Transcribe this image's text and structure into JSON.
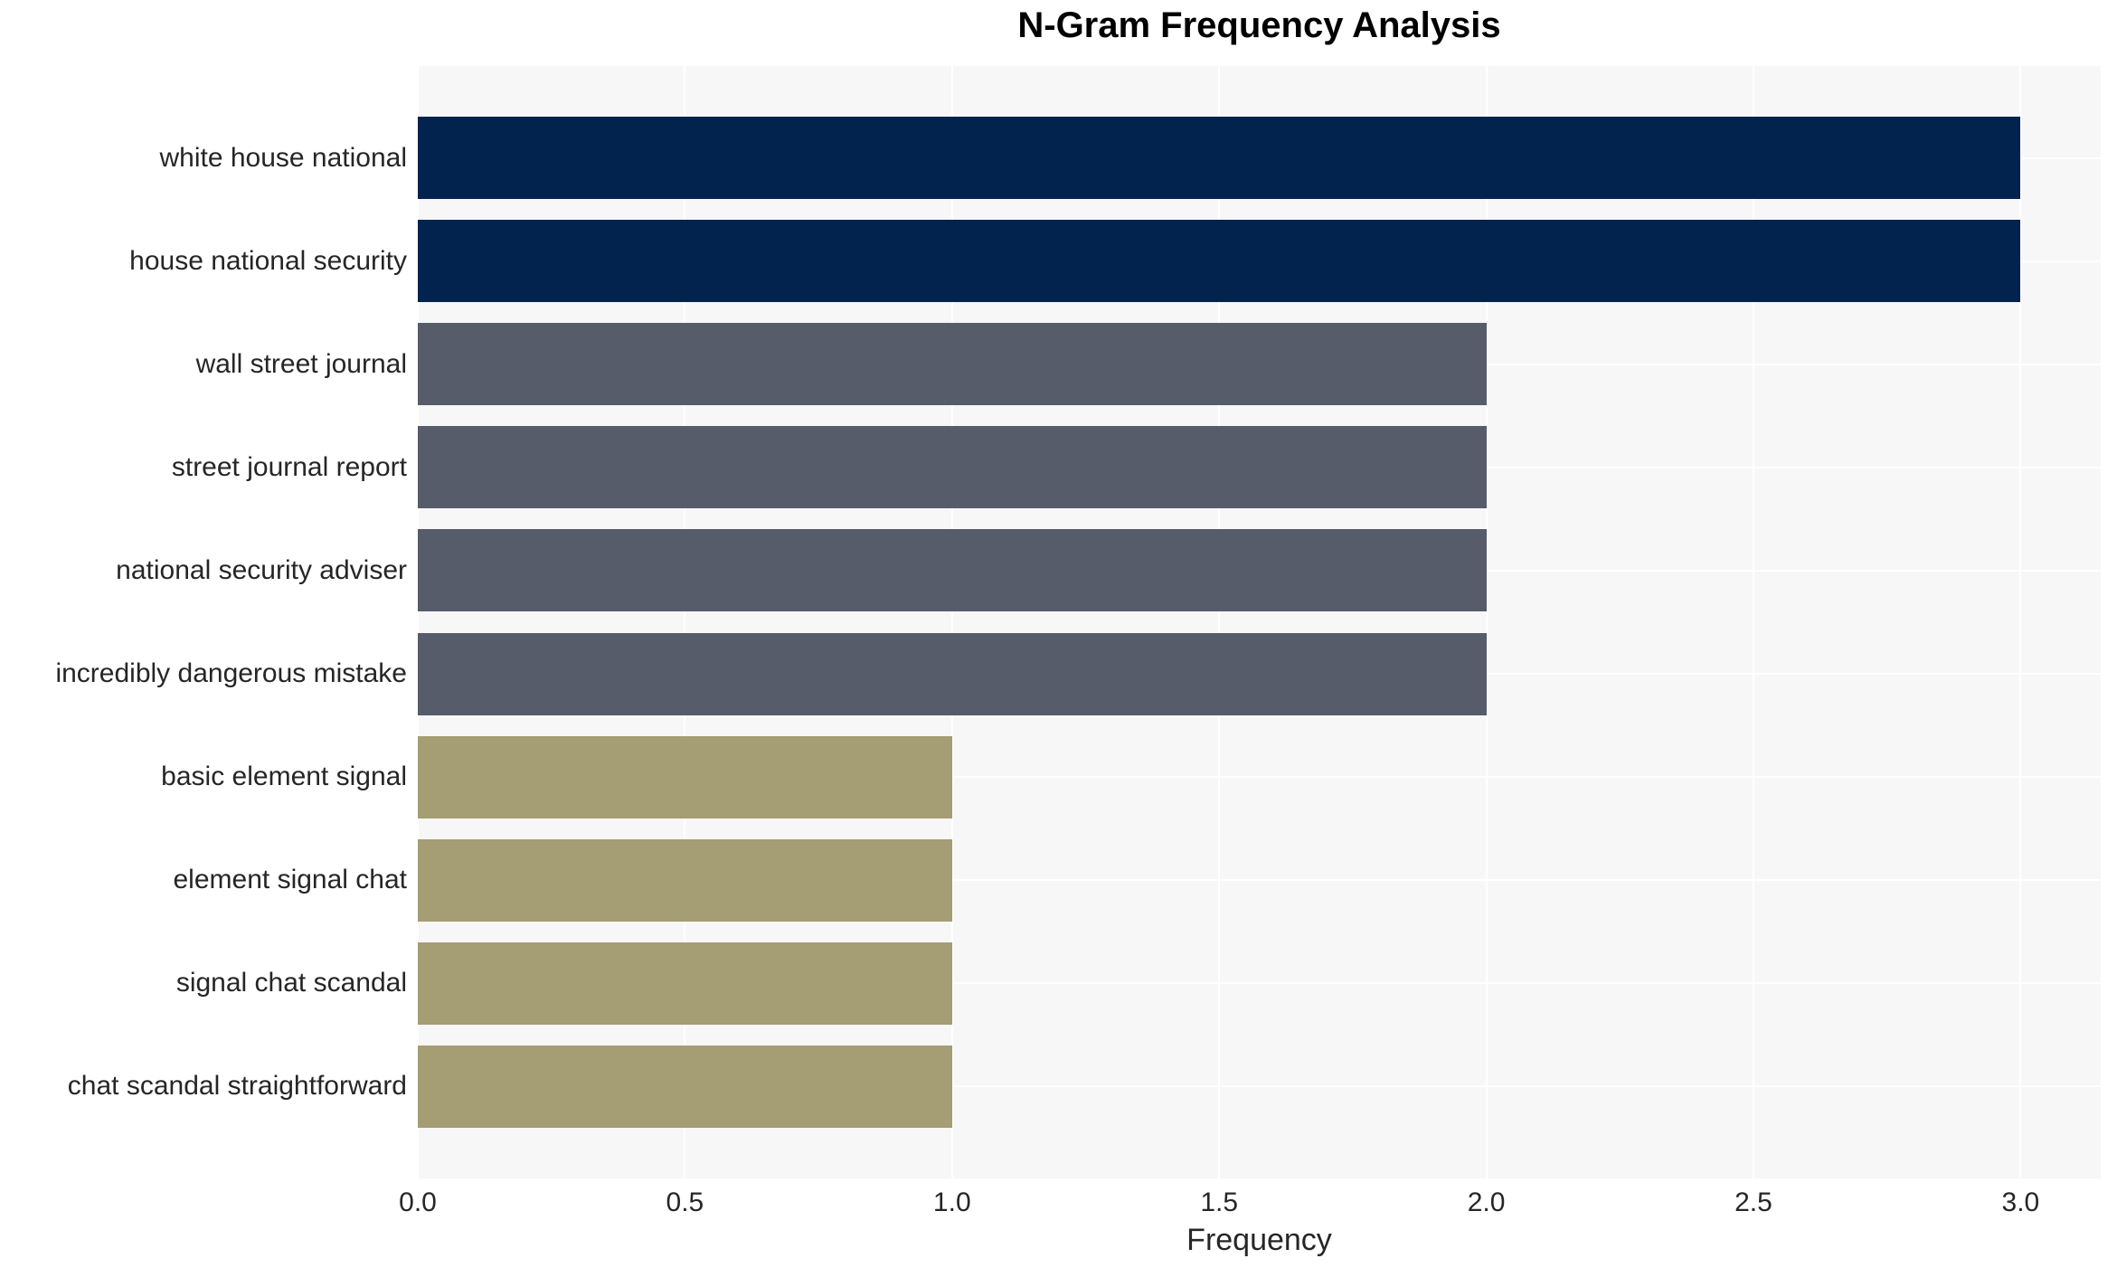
{
  "chart_data": {
    "type": "bar",
    "orientation": "horizontal",
    "title": "N-Gram Frequency Analysis",
    "xlabel": "Frequency",
    "ylabel": "",
    "categories": [
      "white house national",
      "house national security",
      "wall street journal",
      "street journal report",
      "national security adviser",
      "incredibly dangerous mistake",
      "basic element signal",
      "element signal chat",
      "signal chat scandal",
      "chat scandal straightforward"
    ],
    "values": [
      3,
      3,
      2,
      2,
      2,
      2,
      1,
      1,
      1,
      1
    ],
    "bar_colors": [
      "#02234e",
      "#02234e",
      "#575c6a",
      "#575c6a",
      "#575c6a",
      "#575c6a",
      "#a59d73",
      "#a59d73",
      "#a59d73",
      "#a59d73"
    ],
    "xticks": [
      {
        "label": "0.0",
        "value": 0.0
      },
      {
        "label": "0.5",
        "value": 0.5
      },
      {
        "label": "1.0",
        "value": 1.0
      },
      {
        "label": "1.5",
        "value": 1.5
      },
      {
        "label": "2.0",
        "value": 2.0
      },
      {
        "label": "2.5",
        "value": 2.5
      },
      {
        "label": "3.0",
        "value": 3.0
      }
    ],
    "xlim": [
      0,
      3.15
    ],
    "grid": "on",
    "grid_color": "#ffffff",
    "plot_background": "#f7f7f7",
    "page_background": "#ffffff",
    "text_color": "#262626",
    "title_color": "#000000",
    "legend": "none"
  }
}
